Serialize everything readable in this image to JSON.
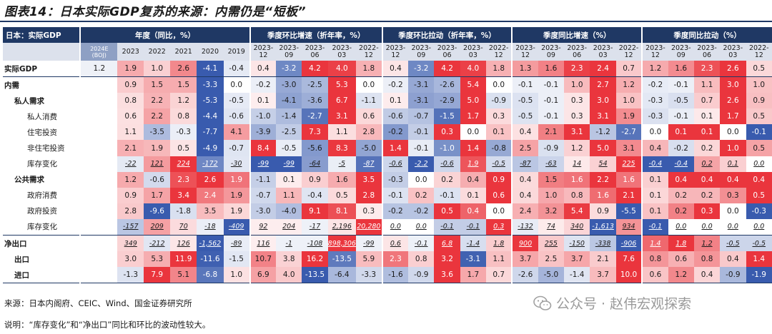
{
  "title": "图表14：日本实际GDP复苏的来源：内需仍是“短板”",
  "source": "来源：日本内阁府、CEIC、Wind、国金证券研究所",
  "note": "说明：“库存变化”和“净出口”同比和环比的波动性较大。",
  "watermark": "公众号 · 赵伟宏观探索",
  "header_groups": [
    "日本：实际GDP",
    "年度（同比，%）",
    "季度环比增速（折年率，%）",
    "季度环比拉动（折年率，%）",
    "季度同比增速（%）",
    "季度同比拉动（%）"
  ],
  "annual_cols": [
    "2024E\n(BOJ)",
    "2023",
    "2022",
    "2021",
    "2020",
    "2019"
  ],
  "quarter_cols": [
    "2023-\n12",
    "2023-\n09",
    "2023-\n06",
    "2023-\n03",
    "2022-\n12"
  ],
  "rows": [
    {
      "label": "实际GDP",
      "level": 0,
      "v": [
        "1.2",
        "1.9",
        "1.0",
        "2.6",
        "-4.1",
        "-0.4",
        "0.4",
        "-3.2",
        "4.2",
        "4.0",
        "1.8",
        "0.4",
        "-3.2",
        "4.2",
        "4.0",
        "1.8",
        "1.3",
        "1.6",
        "2.3",
        "2.4",
        "0.7",
        "1.2",
        "1.6",
        "2.3",
        "2.6",
        "0.5"
      ]
    },
    {
      "label": "内需",
      "level": 0,
      "v": [
        "",
        "0.9",
        "1.5",
        "1.5",
        "-3.3",
        "0.0",
        "-0.2",
        "-3.0",
        "-2.5",
        "5.3",
        "0.0",
        "-0.2",
        "-3.1",
        "-2.6",
        "5.4",
        "0.0",
        "-0.1",
        "-0.1",
        "1.0",
        "2.7",
        "1.2",
        "-0.2",
        "-0.1",
        "1.1",
        "3.0",
        "1.0"
      ]
    },
    {
      "label": "私人需求",
      "level": 1,
      "v": [
        "",
        "0.8",
        "2.2",
        "1.2",
        "-5.3",
        "-0.5",
        "0.1",
        "-4.1",
        "-3.6",
        "6.7",
        "-1.1",
        "0.1",
        "-3.1",
        "-2.9",
        "5.0",
        "-0.9",
        "-0.5",
        "-0.1",
        "0.3",
        "3.0",
        "1.0",
        "-0.3",
        "-0.5",
        "0.7",
        "2.6",
        "0.9"
      ]
    },
    {
      "label": "私人消费",
      "level": 2,
      "v": [
        "",
        "0.6",
        "2.2",
        "0.8",
        "-4.4",
        "-0.6",
        "-1.0",
        "-1.4",
        "-2.7",
        "3.1",
        "0.6",
        "-0.6",
        "-0.7",
        "-1.5",
        "1.7",
        "0.3",
        "-0.5",
        "-0.1",
        "0.3",
        "3.1",
        "1.9",
        "-0.3",
        "-0.1",
        "0.1",
        "1.7",
        "0.5"
      ]
    },
    {
      "label": "住宅投资",
      "level": 2,
      "v": [
        "",
        "1.1",
        "-3.5",
        "-0.3",
        "-7.7",
        "4.1",
        "-3.9",
        "-2.5",
        "7.3",
        "1.1",
        "2.8",
        "-0.2",
        "-0.1",
        "0.3",
        "0.0",
        "0.1",
        "0.4",
        "2.1",
        "3.1",
        "-1.2",
        "-2.7",
        "0.0",
        "0.1",
        "0.1",
        "0.0",
        "-0.1"
      ]
    },
    {
      "label": "非住宅投资",
      "level": 2,
      "v": [
        "",
        "2.1",
        "1.9",
        "0.5",
        "-4.9",
        "-0.7",
        "8.4",
        "-0.5",
        "-5.6",
        "8.3",
        "-5.0",
        "1.4",
        "-0.1",
        "-1.0",
        "1.4",
        "-0.8",
        "2.5",
        "-0.9",
        "1.2",
        "5.0",
        "3.1",
        "0.4",
        "-0.2",
        "0.2",
        "1.0",
        "0.5"
      ]
    },
    {
      "label": "库存变化",
      "level": 2,
      "it": true,
      "v": [
        "",
        "-22",
        "121",
        "224",
        "-172",
        "-30",
        "-99",
        "-99",
        "-64",
        "-5",
        "-87",
        "-0.6",
        "-2.2",
        "-0.6",
        "1.9",
        "-0.5",
        "-87",
        "-63",
        "14",
        "54",
        "225",
        "-0.4",
        "-0.4",
        "0.2",
        "0.1",
        "0.0"
      ]
    },
    {
      "label": "公共需求",
      "level": 1,
      "v": [
        "",
        "1.2",
        "-0.6",
        "2.3",
        "2.6",
        "1.9",
        "-1.1",
        "0.1",
        "0.9",
        "1.6",
        "3.5",
        "-0.3",
        "0.0",
        "0.2",
        "0.4",
        "0.9",
        "0.4",
        "1.5",
        "1.6",
        "2.2",
        "1.6",
        "0.1",
        "0.4",
        "0.4",
        "0.4",
        "0.4"
      ]
    },
    {
      "label": "政府消费",
      "level": 2,
      "v": [
        "",
        "0.9",
        "1.7",
        "3.4",
        "2.4",
        "1.9",
        "-0.7",
        "1.1",
        "-0.4",
        "0.5",
        "2.8",
        "-0.1",
        "0.2",
        "-0.1",
        "0.1",
        "0.6",
        "0.4",
        "1.0",
        "0.8",
        "1.6",
        "2.1",
        "0.1",
        "0.2",
        "0.2",
        "0.3",
        "0.5"
      ]
    },
    {
      "label": "政府投资",
      "level": 2,
      "v": [
        "",
        "2.8",
        "-9.6",
        "-1.8",
        "3.5",
        "1.9",
        "-3.0",
        "-4.0",
        "9.1",
        "8.1",
        "0.3",
        "-0.2",
        "-0.2",
        "0.5",
        "0.4",
        "0.0",
        "2.4",
        "3.2",
        "5.4",
        "0.9",
        "-5.5",
        "0.1",
        "0.2",
        "0.3",
        "0.0",
        "-0.3"
      ]
    },
    {
      "label": "库存变化",
      "level": 2,
      "it": true,
      "v": [
        "",
        "-157",
        "209",
        "70",
        "-18",
        "-409",
        "92",
        "204",
        "-17",
        "2,196",
        "20,280",
        "0.0",
        "0.0",
        "-0.1",
        "-0.1",
        "0.3",
        "-132",
        "74",
        "340",
        "-1,613",
        "934",
        "-0.1",
        "0.0",
        "0.0",
        "0.0",
        "0.0"
      ]
    },
    {
      "label": "净出口",
      "level": 0,
      "it": true,
      "v": [
        "",
        "349",
        "-212",
        "126",
        "-1,562",
        "-89",
        "116",
        "-1",
        "-108",
        "898,306",
        "-99",
        "0.6",
        "-0.1",
        "6.8",
        "-1.4",
        "1.8",
        "900",
        "255",
        "-150",
        "-338",
        "-906",
        "1.4",
        "1.8",
        "1.2",
        "-0.5",
        "-0.5"
      ]
    },
    {
      "label": "出口",
      "level": 1,
      "v": [
        "",
        "3.0",
        "5.3",
        "11.9",
        "-11.6",
        "-1.5",
        "10.7",
        "3.8",
        "16.2",
        "-13.5",
        "5.9",
        "2.3",
        "0.8",
        "3.2",
        "-3.1",
        "1.1",
        "3.7",
        "2.5",
        "3.7",
        "2.1",
        "7.6",
        "0.8",
        "0.6",
        "0.8",
        "0.4",
        "1.4"
      ]
    },
    {
      "label": "进口",
      "level": 1,
      "v": [
        "",
        "-1.3",
        "7.9",
        "5.1",
        "-6.8",
        "1.0",
        "6.9",
        "4.0",
        "-13.5",
        "-6.4",
        "-3.3",
        "-1.6",
        "-0.9",
        "3.6",
        "1.7",
        "0.7",
        "-2.6",
        "-5.0",
        "-1.4",
        "3.7",
        "10.0",
        "0.6",
        "1.2",
        "0.4",
        "-0.9",
        "-1.9"
      ]
    }
  ],
  "colors": {
    "header": "#1f3864",
    "positive": "#e8262e",
    "negative": "#2a4fa8",
    "subheader": "#dce1ec"
  }
}
